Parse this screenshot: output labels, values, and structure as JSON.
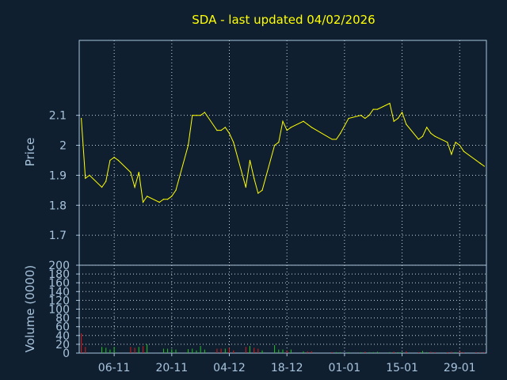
{
  "chart_data": [
    {
      "type": "line",
      "title": "SDA - last updated 04/02/2026",
      "ylabel": "Price",
      "ylim": [
        1.6,
        2.35
      ],
      "yticks": [
        "1.7",
        "1.8",
        "1.9",
        "2",
        "2.1"
      ],
      "xticks": [
        "06-11",
        "20-11",
        "04-12",
        "18-12",
        "01-01",
        "15-01",
        "29-01"
      ],
      "x": [
        "2025-10-29",
        "2025-10-30",
        "2025-10-31",
        "2025-11-03",
        "2025-11-04",
        "2025-11-05",
        "2025-11-06",
        "2025-11-07",
        "2025-11-10",
        "2025-11-11",
        "2025-11-12",
        "2025-11-13",
        "2025-11-14",
        "2025-11-17",
        "2025-11-18",
        "2025-11-19",
        "2025-11-20",
        "2025-11-21",
        "2025-11-24",
        "2025-11-25",
        "2025-11-26",
        "2025-11-27",
        "2025-11-28",
        "2025-12-01",
        "2025-12-02",
        "2025-12-03",
        "2025-12-04",
        "2025-12-05",
        "2025-12-08",
        "2025-12-09",
        "2025-12-10",
        "2025-12-11",
        "2025-12-12",
        "2025-12-15",
        "2025-12-16",
        "2025-12-17",
        "2025-12-18",
        "2025-12-19",
        "2025-12-22",
        "2025-12-23",
        "2025-12-24",
        "2025-12-29",
        "2025-12-30",
        "2025-12-31",
        "2026-01-02",
        "2026-01-05",
        "2026-01-06",
        "2026-01-07",
        "2026-01-08",
        "2026-01-09",
        "2026-01-12",
        "2026-01-13",
        "2026-01-14",
        "2026-01-15",
        "2026-01-16",
        "2026-01-19",
        "2026-01-20",
        "2026-01-21",
        "2026-01-22",
        "2026-01-23",
        "2026-01-26",
        "2026-01-27",
        "2026-01-28",
        "2026-01-29",
        "2026-01-30",
        "2026-02-02",
        "2026-02-03",
        "2026-02-04"
      ],
      "series": [
        {
          "color": "#ffff00",
          "values": [
            2.09,
            1.89,
            1.9,
            1.86,
            1.88,
            1.95,
            1.96,
            1.95,
            1.91,
            1.86,
            1.91,
            1.81,
            1.83,
            1.81,
            1.82,
            1.82,
            1.83,
            1.85,
            2.0,
            2.1,
            2.1,
            2.1,
            2.11,
            2.05,
            2.05,
            2.06,
            2.04,
            2.01,
            1.86,
            1.95,
            1.89,
            1.84,
            1.85,
            2.0,
            2.01,
            2.08,
            2.05,
            2.06,
            2.08,
            2.07,
            2.06,
            2.02,
            2.02,
            2.04,
            2.09,
            2.1,
            2.09,
            2.1,
            2.12,
            2.12,
            2.14,
            2.08,
            2.09,
            2.11,
            2.07,
            2.02,
            2.03,
            2.06,
            2.04,
            2.03,
            2.01,
            1.97,
            2.01,
            2.0,
            1.98,
            1.95,
            1.94,
            1.93
          ]
        }
      ]
    },
    {
      "type": "bar",
      "ylabel": "Volume (0000)",
      "ylim": [
        0,
        200
      ],
      "yticks": [
        "0",
        "20",
        "40",
        "60",
        "80",
        "100",
        "120",
        "140",
        "160",
        "180",
        "200"
      ],
      "series": [
        {
          "name": "",
          "values": [
            45,
            14,
            0,
            14,
            12,
            8,
            14,
            0,
            14,
            12,
            14,
            16,
            20,
            0,
            10,
            10,
            9,
            8,
            9,
            10,
            6,
            16,
            8,
            10,
            10,
            10,
            12,
            6,
            14,
            16,
            12,
            10,
            6,
            18,
            8,
            8,
            6,
            8,
            4,
            4,
            4,
            2,
            2,
            2,
            2,
            2,
            3,
            2,
            2,
            3,
            2,
            3,
            2,
            2,
            4,
            2,
            5,
            2,
            3,
            2,
            2,
            3,
            2,
            4,
            2,
            2,
            2,
            2
          ],
          "direction": [
            "dn",
            "dn",
            "up",
            "up",
            "up",
            "up",
            "up",
            "up",
            "dn",
            "dn",
            "up",
            "dn",
            "up",
            "dn",
            "up",
            "up",
            "up",
            "up",
            "up",
            "up",
            "up",
            "up",
            "up",
            "dn",
            "dn",
            "up",
            "dn",
            "dn",
            "dn",
            "up",
            "dn",
            "dn",
            "up",
            "up",
            "up",
            "up",
            "dn",
            "up",
            "up",
            "dn",
            "dn",
            "dn",
            "up",
            "up",
            "up",
            "up",
            "dn",
            "up",
            "up",
            "up",
            "up",
            "dn",
            "up",
            "up",
            "dn",
            "dn",
            "up",
            "up",
            "dn",
            "dn",
            "dn",
            "dn",
            "up",
            "dn",
            "dn",
            "dn",
            "dn",
            "dn"
          ]
        }
      ],
      "colors": {
        "up": "#22c322",
        "dn": "#e01818"
      }
    }
  ]
}
